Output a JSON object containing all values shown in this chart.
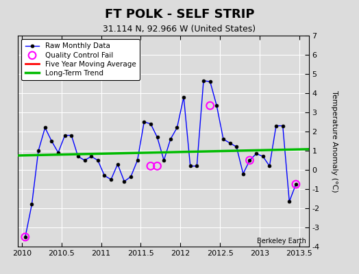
{
  "title": "FT POLK - SELF STRIP",
  "subtitle": "31.114 N, 92.966 W (United States)",
  "ylabel": "Temperature Anomaly (°C)",
  "watermark": "Berkeley Earth",
  "ylim": [
    -4,
    7
  ],
  "xlim": [
    2009.95,
    2013.62
  ],
  "background_color": "#dcdcdc",
  "plot_bg_color": "#dcdcdc",
  "grid_color": "white",
  "raw_x": [
    2010.042,
    2010.125,
    2010.208,
    2010.292,
    2010.375,
    2010.458,
    2010.542,
    2010.625,
    2010.708,
    2010.792,
    2010.875,
    2010.958,
    2011.042,
    2011.125,
    2011.208,
    2011.292,
    2011.375,
    2011.458,
    2011.542,
    2011.625,
    2011.708,
    2011.792,
    2011.875,
    2011.958,
    2012.042,
    2012.125,
    2012.208,
    2012.292,
    2012.375,
    2012.458,
    2012.542,
    2012.625,
    2012.708,
    2012.792,
    2012.875,
    2012.958,
    2013.042,
    2013.125,
    2013.208,
    2013.292,
    2013.375,
    2013.458
  ],
  "raw_y": [
    -3.5,
    -1.8,
    1.0,
    2.2,
    1.5,
    0.9,
    1.8,
    1.8,
    0.7,
    0.5,
    0.7,
    0.5,
    -0.3,
    -0.5,
    0.3,
    -0.6,
    -0.35,
    0.5,
    2.5,
    2.4,
    1.7,
    0.5,
    1.6,
    2.2,
    3.8,
    0.2,
    0.2,
    4.65,
    4.6,
    3.35,
    1.6,
    1.4,
    1.2,
    -0.2,
    0.5,
    0.85,
    0.7,
    0.2,
    2.3,
    2.3,
    -1.65,
    -0.75
  ],
  "qc_fail_x": [
    2010.042,
    2011.625,
    2011.708,
    2012.375,
    2012.875,
    2013.458
  ],
  "qc_fail_y": [
    -3.5,
    0.2,
    0.2,
    3.35,
    0.5,
    -0.75
  ],
  "trend_x": [
    2009.95,
    2013.62
  ],
  "trend_y": [
    0.75,
    1.08
  ],
  "raw_line_color": "blue",
  "raw_marker_color": "black",
  "raw_marker_size": 3.5,
  "qc_color": "magenta",
  "trend_color": "#00bb00",
  "five_yr_color": "red",
  "xticks": [
    2010,
    2010.5,
    2011,
    2011.5,
    2012,
    2012.5,
    2013,
    2013.5
  ],
  "xtick_labels": [
    "2010",
    "2010.5",
    "2011",
    "2011.5",
    "2012",
    "2012.5",
    "2013",
    "2013.5"
  ],
  "yticks": [
    -4,
    -3,
    -2,
    -1,
    0,
    1,
    2,
    3,
    4,
    5,
    6,
    7
  ],
  "title_fontsize": 13,
  "subtitle_fontsize": 9,
  "tick_fontsize": 8,
  "ylabel_fontsize": 8
}
